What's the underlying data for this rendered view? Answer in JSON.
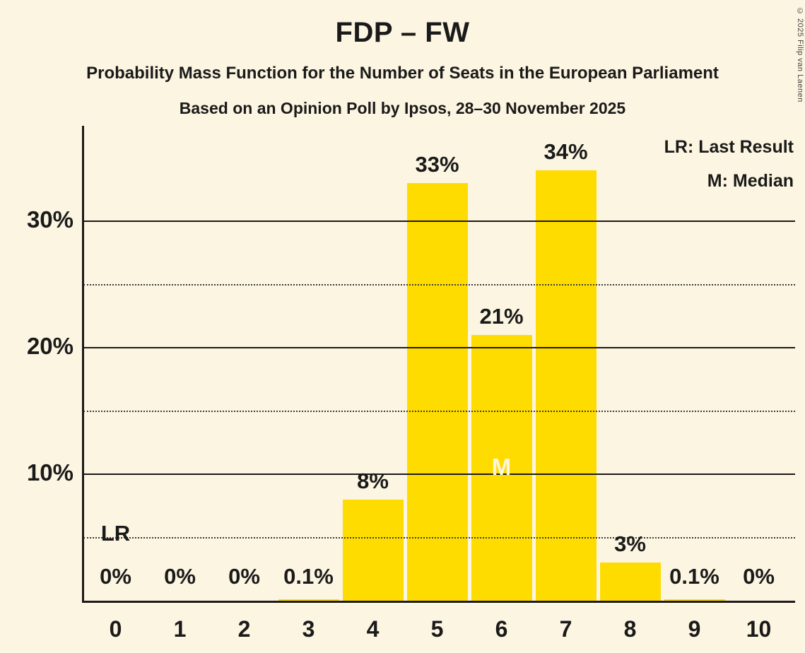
{
  "title": "FDP – FW",
  "subtitle": "Probability Mass Function for the Number of Seats in the European Parliament",
  "poll_line": "Based on an Opinion Poll by Ipsos, 28–30 November 2025",
  "copyright": "© 2025 Filip van Laenen",
  "legend": {
    "lr": "LR: Last Result",
    "m": "M: Median"
  },
  "colors": {
    "bar": "#FFDC00",
    "background": "#FCF5E1",
    "text": "#1a1a1a",
    "median_label": "#FCF5E1"
  },
  "chart_data": {
    "type": "bar",
    "title": "FDP – FW",
    "categories": [
      0,
      1,
      2,
      3,
      4,
      5,
      6,
      7,
      8,
      9,
      10
    ],
    "values": [
      0,
      0,
      0,
      0.1,
      8,
      33,
      21,
      34,
      3,
      0.1,
      0
    ],
    "value_labels": [
      "0%",
      "0%",
      "0%",
      "0.1%",
      "8%",
      "33%",
      "21%",
      "34%",
      "3%",
      "0.1%",
      "0%"
    ],
    "ylim": [
      0,
      37.5
    ],
    "yticks": [
      10,
      20,
      30
    ],
    "ytick_labels": [
      "10%",
      "20%",
      "30%"
    ],
    "dotted_lines": [
      5,
      15,
      25
    ],
    "median_seat": 6,
    "m_label": "M",
    "last_result_seat": 0,
    "lr_label": "LR",
    "grid": "horizontal",
    "legend_position": "top-right"
  }
}
